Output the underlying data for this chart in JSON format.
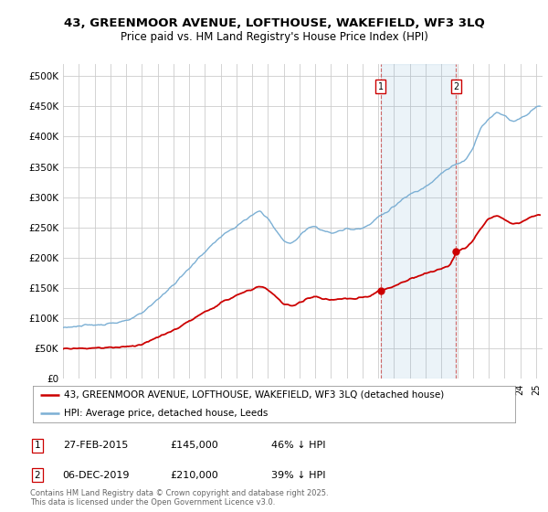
{
  "title_line1": "43, GREENMOOR AVENUE, LOFTHOUSE, WAKEFIELD, WF3 3LQ",
  "title_line2": "Price paid vs. HM Land Registry's House Price Index (HPI)",
  "hpi_color": "#7bafd4",
  "hpi_fill_color": "#d6e8f5",
  "price_color": "#cc0000",
  "background_color": "#ffffff",
  "grid_color": "#cccccc",
  "annotation1": {
    "label": "1",
    "date_str": "27-FEB-2015",
    "price": 145000,
    "note": "46% ↓ HPI"
  },
  "annotation2": {
    "label": "2",
    "date_str": "06-DEC-2019",
    "price": 210000,
    "note": "39% ↓ HPI"
  },
  "legend_line1": "43, GREENMOOR AVENUE, LOFTHOUSE, WAKEFIELD, WF3 3LQ (detached house)",
  "legend_line2": "HPI: Average price, detached house, Leeds",
  "footer": "Contains HM Land Registry data © Crown copyright and database right 2025.\nThis data is licensed under the Open Government Licence v3.0.",
  "yticks": [
    0,
    50000,
    100000,
    150000,
    200000,
    250000,
    300000,
    350000,
    400000,
    450000,
    500000
  ],
  "ytick_labels": [
    "£0",
    "£50K",
    "£100K",
    "£150K",
    "£200K",
    "£250K",
    "£300K",
    "£350K",
    "£400K",
    "£450K",
    "£500K"
  ],
  "ylim": [
    0,
    520000
  ]
}
